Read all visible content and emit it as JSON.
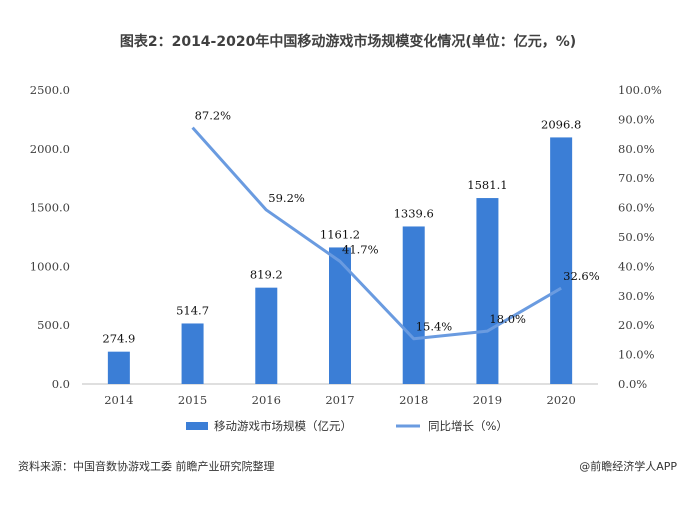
{
  "chart_data": {
    "type": "bar",
    "title": "图表2：2014-2020年中国移动游戏市场规模变化情况(单位：亿元，%)",
    "categories": [
      "2014",
      "2015",
      "2016",
      "2017",
      "2018",
      "2019",
      "2020"
    ],
    "series": [
      {
        "name": "移动游戏市场规模（亿元）",
        "type": "bar",
        "axis": "left",
        "color": "#3b7ed6",
        "values": [
          274.9,
          514.7,
          819.2,
          1161.2,
          1339.6,
          1581.1,
          2096.8
        ],
        "labels": [
          "274.9",
          "514.7",
          "819.2",
          "1161.2",
          "1339.6",
          "1581.1",
          "2096.8"
        ]
      },
      {
        "name": "同比增长（%）",
        "type": "line",
        "axis": "right",
        "color": "#6a9be0",
        "values": [
          null,
          87.2,
          59.2,
          41.7,
          15.4,
          18.0,
          32.6
        ],
        "labels": [
          "",
          "87.2%",
          "59.2%",
          "41.7%",
          "15.4%",
          "18.0%",
          "32.6%"
        ]
      }
    ],
    "y_left": {
      "min": 0,
      "max": 2500,
      "ticks": [
        0,
        500,
        1000,
        1500,
        2000,
        2500
      ],
      "tick_labels": [
        "0.0",
        "500.0",
        "1000.0",
        "1500.0",
        "2000.0",
        "2500.0"
      ]
    },
    "y_right": {
      "min": 0,
      "max": 100,
      "ticks": [
        0,
        10,
        20,
        30,
        40,
        50,
        60,
        70,
        80,
        90,
        100
      ],
      "tick_labels": [
        "0.0%",
        "10.0%",
        "20.0%",
        "30.0%",
        "40.0%",
        "50.0%",
        "60.0%",
        "70.0%",
        "80.0%",
        "90.0%",
        "100.0%"
      ]
    },
    "grid": false,
    "legend_position": "bottom"
  },
  "footer": {
    "source": "资料来源：中国音数协游戏工委 前瞻产业研究院整理",
    "credit": "@前瞻经济学人APP"
  }
}
